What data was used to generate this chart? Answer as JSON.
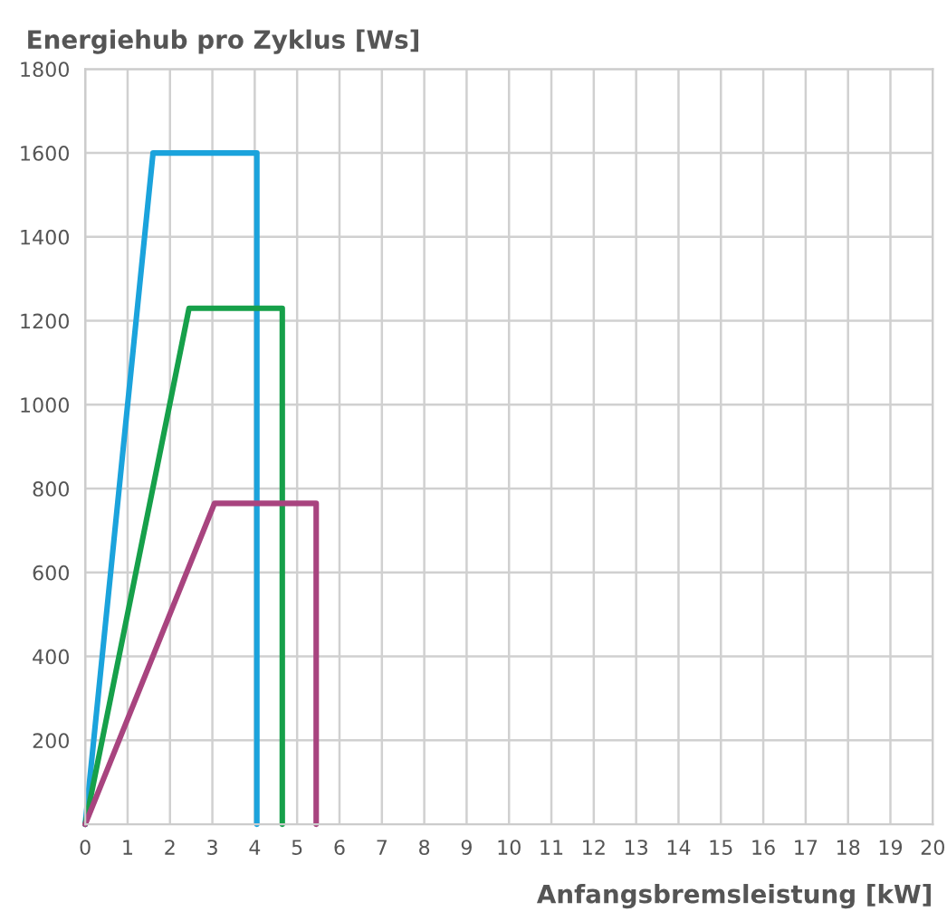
{
  "chart_data": {
    "type": "line",
    "ylabel": "Energiehub pro Zyklus [Ws]",
    "xlabel": "Anfangsbremsleistung [kW]",
    "xlim": [
      0,
      20
    ],
    "xticks": [
      0,
      1,
      2,
      3,
      4,
      5,
      6,
      7,
      8,
      9,
      10,
      11,
      12,
      13,
      14,
      15,
      16,
      17,
      18,
      19,
      20
    ],
    "ylim": [
      0,
      1800
    ],
    "yticks": [
      200,
      400,
      600,
      800,
      1000,
      1200,
      1400,
      1600,
      1800
    ],
    "grid": true,
    "legend": false,
    "marker": "none",
    "line_style": "solid",
    "series": [
      {
        "color": "#1ba3dc",
        "x": [
          0,
          1.6,
          4.05,
          4.05
        ],
        "values": [
          0,
          1600,
          1600,
          0
        ]
      },
      {
        "color": "#16a04a",
        "x": [
          0,
          2.45,
          4.65,
          4.65
        ],
        "values": [
          0,
          1230,
          1230,
          0
        ]
      },
      {
        "color": "#a8447f",
        "x": [
          0,
          3.05,
          5.45,
          5.45
        ],
        "values": [
          0,
          765,
          765,
          0
        ]
      }
    ]
  }
}
